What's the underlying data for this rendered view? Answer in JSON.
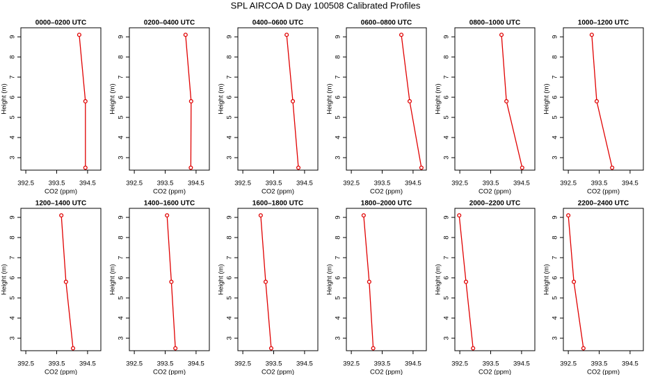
{
  "title": "SPL AIRCOA D  Day 100508  Calibrated Profiles",
  "chart_data": [
    {
      "type": "line",
      "title": "0000–0200 UTC",
      "xlabel": "CO2 (ppm)",
      "ylabel": "Height (m)",
      "xlim": [
        392.34,
        394.93
      ],
      "ylim": [
        2.38,
        9.45
      ],
      "xticks": [
        392.5,
        393.5,
        394.5
      ],
      "yticks": [
        3,
        4,
        5,
        6,
        7,
        8,
        9
      ],
      "series": [
        {
          "color": "#e00000",
          "x": [
            394.23,
            394.43,
            394.43
          ],
          "y": [
            9.1,
            5.8,
            2.5
          ]
        }
      ]
    },
    {
      "type": "line",
      "title": "0200–0400 UTC",
      "xlabel": "CO2 (ppm)",
      "ylabel": "Height (m)",
      "xlim": [
        392.34,
        394.93
      ],
      "ylim": [
        2.38,
        9.45
      ],
      "xticks": [
        392.5,
        393.5,
        394.5
      ],
      "yticks": [
        3,
        4,
        5,
        6,
        7,
        8,
        9
      ],
      "series": [
        {
          "color": "#e00000",
          "x": [
            394.16,
            394.34,
            394.33
          ],
          "y": [
            9.1,
            5.8,
            2.5
          ]
        }
      ]
    },
    {
      "type": "line",
      "title": "0400–0600 UTC",
      "xlabel": "CO2 (ppm)",
      "ylabel": "Height (m)",
      "xlim": [
        392.34,
        394.93
      ],
      "ylim": [
        2.38,
        9.45
      ],
      "xticks": [
        392.5,
        393.5,
        394.5
      ],
      "yticks": [
        3,
        4,
        5,
        6,
        7,
        8,
        9
      ],
      "series": [
        {
          "color": "#e00000",
          "x": [
            393.92,
            394.12,
            394.3
          ],
          "y": [
            9.1,
            5.8,
            2.5
          ]
        }
      ]
    },
    {
      "type": "line",
      "title": "0600–0800 UTC",
      "xlabel": "CO2 (ppm)",
      "ylabel": "Height (m)",
      "xlim": [
        392.34,
        394.93
      ],
      "ylim": [
        2.38,
        9.45
      ],
      "xticks": [
        392.5,
        393.5,
        394.5
      ],
      "yticks": [
        3,
        4,
        5,
        6,
        7,
        8,
        9
      ],
      "series": [
        {
          "color": "#e00000",
          "x": [
            394.12,
            394.39,
            394.77
          ],
          "y": [
            9.1,
            5.8,
            2.5
          ]
        }
      ]
    },
    {
      "type": "line",
      "title": "0800–1000 UTC",
      "xlabel": "CO2 (ppm)",
      "ylabel": "Height (m)",
      "xlim": [
        392.34,
        394.93
      ],
      "ylim": [
        2.38,
        9.45
      ],
      "xticks": [
        392.5,
        393.5,
        394.5
      ],
      "yticks": [
        3,
        4,
        5,
        6,
        7,
        8,
        9
      ],
      "series": [
        {
          "color": "#e00000",
          "x": [
            393.85,
            394.01,
            394.52
          ],
          "y": [
            9.1,
            5.8,
            2.5
          ]
        }
      ]
    },
    {
      "type": "line",
      "title": "1000–1200 UTC",
      "xlabel": "CO2 (ppm)",
      "ylabel": "Height (m)",
      "xlim": [
        392.34,
        394.93
      ],
      "ylim": [
        2.38,
        9.45
      ],
      "xticks": [
        392.5,
        393.5,
        394.5
      ],
      "yticks": [
        3,
        4,
        5,
        6,
        7,
        8,
        9
      ],
      "series": [
        {
          "color": "#e00000",
          "x": [
            393.26,
            393.42,
            393.92
          ],
          "y": [
            9.1,
            5.8,
            2.5
          ]
        }
      ]
    },
    {
      "type": "line",
      "title": "1200–1400 UTC",
      "xlabel": "CO2 (ppm)",
      "ylabel": "Height (m)",
      "xlim": [
        392.34,
        394.93
      ],
      "ylim": [
        2.38,
        9.45
      ],
      "xticks": [
        392.5,
        393.5,
        394.5
      ],
      "yticks": [
        3,
        4,
        5,
        6,
        7,
        8,
        9
      ],
      "series": [
        {
          "color": "#e00000",
          "x": [
            393.65,
            393.8,
            394.03
          ],
          "y": [
            9.1,
            5.8,
            2.5
          ]
        }
      ]
    },
    {
      "type": "line",
      "title": "1400–1600 UTC",
      "xlabel": "CO2 (ppm)",
      "ylabel": "Height (m)",
      "xlim": [
        392.34,
        394.93
      ],
      "ylim": [
        2.38,
        9.45
      ],
      "xticks": [
        392.5,
        393.5,
        394.5
      ],
      "yticks": [
        3,
        4,
        5,
        6,
        7,
        8,
        9
      ],
      "series": [
        {
          "color": "#e00000",
          "x": [
            393.56,
            393.7,
            393.83
          ],
          "y": [
            9.1,
            5.8,
            2.5
          ]
        }
      ]
    },
    {
      "type": "line",
      "title": "1600–1800 UTC",
      "xlabel": "CO2 (ppm)",
      "ylabel": "Height (m)",
      "xlim": [
        392.34,
        394.93
      ],
      "ylim": [
        2.38,
        9.45
      ],
      "xticks": [
        392.5,
        393.5,
        394.5
      ],
      "yticks": [
        3,
        4,
        5,
        6,
        7,
        8,
        9
      ],
      "series": [
        {
          "color": "#e00000",
          "x": [
            393.08,
            393.24,
            393.42
          ],
          "y": [
            9.1,
            5.8,
            2.5
          ]
        }
      ]
    },
    {
      "type": "line",
      "title": "1800–2000 UTC",
      "xlabel": "CO2 (ppm)",
      "ylabel": "Height (m)",
      "xlim": [
        392.34,
        394.93
      ],
      "ylim": [
        2.38,
        9.45
      ],
      "xticks": [
        392.5,
        393.5,
        394.5
      ],
      "yticks": [
        3,
        4,
        5,
        6,
        7,
        8,
        9
      ],
      "series": [
        {
          "color": "#e00000",
          "x": [
            392.9,
            393.08,
            393.21
          ],
          "y": [
            9.1,
            5.8,
            2.5
          ]
        }
      ]
    },
    {
      "type": "line",
      "title": "2000–2200 UTC",
      "xlabel": "CO2 (ppm)",
      "ylabel": "Height (m)",
      "xlim": [
        392.34,
        394.93
      ],
      "ylim": [
        2.38,
        9.45
      ],
      "xticks": [
        392.5,
        393.5,
        394.5
      ],
      "yticks": [
        3,
        4,
        5,
        6,
        7,
        8,
        9
      ],
      "series": [
        {
          "color": "#e00000",
          "x": [
            392.48,
            392.7,
            392.93
          ],
          "y": [
            9.1,
            5.8,
            2.5
          ]
        }
      ]
    },
    {
      "type": "line",
      "title": "2200–2400 UTC",
      "xlabel": "CO2 (ppm)",
      "ylabel": "Height (m)",
      "xlim": [
        392.34,
        394.93
      ],
      "ylim": [
        2.38,
        9.45
      ],
      "xticks": [
        392.5,
        393.5,
        394.5
      ],
      "yticks": [
        3,
        4,
        5,
        6,
        7,
        8,
        9
      ],
      "series": [
        {
          "color": "#e00000",
          "x": [
            392.5,
            392.68,
            392.99
          ],
          "y": [
            9.1,
            5.8,
            2.5
          ]
        }
      ]
    }
  ]
}
